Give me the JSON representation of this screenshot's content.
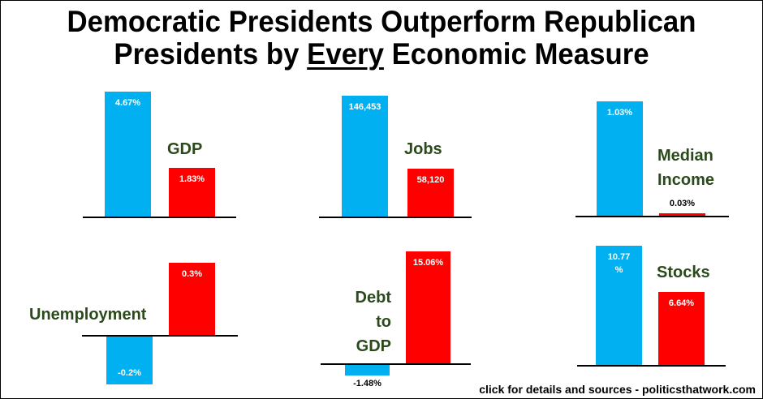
{
  "title": {
    "line1": "Democratic Presidents Outperform Republican",
    "line2_pre": "Presidents by ",
    "line2_emph": "Every",
    "line2_post": " Economic Measure"
  },
  "footer": "click for details and sources - politicsthatwork.com",
  "colors": {
    "democratic": "#00b0f0",
    "republican": "#ff0000",
    "category_text": "#2b4a1b"
  },
  "chart_data": [
    {
      "type": "bar",
      "title": "GDP",
      "categories": [
        "Democratic",
        "Republican"
      ],
      "values": [
        4.67,
        1.83
      ],
      "labels": [
        "4.67%",
        "1.83%"
      ]
    },
    {
      "type": "bar",
      "title": "Jobs",
      "categories": [
        "Democratic",
        "Republican"
      ],
      "values": [
        146453,
        58120
      ],
      "labels": [
        "146,453",
        "58,120"
      ]
    },
    {
      "type": "bar",
      "title": "Median Income",
      "title_lines": [
        "Median",
        "Income"
      ],
      "categories": [
        "Democratic",
        "Republican"
      ],
      "values": [
        1.03,
        0.03
      ],
      "labels": [
        "1.03%",
        "0.03%"
      ]
    },
    {
      "type": "bar",
      "title": "Unemployment",
      "categories": [
        "Democratic",
        "Republican"
      ],
      "values": [
        -0.2,
        0.3
      ],
      "labels": [
        "-0.2%",
        "0.3%"
      ]
    },
    {
      "type": "bar",
      "title": "Debt to GDP",
      "title_lines": [
        "Debt",
        "to",
        "GDP"
      ],
      "categories": [
        "Democratic",
        "Republican"
      ],
      "values": [
        -1.48,
        15.06
      ],
      "labels": [
        "-1.48%",
        "15.06%"
      ]
    },
    {
      "type": "bar",
      "title": "Stocks",
      "categories": [
        "Democratic",
        "Republican"
      ],
      "values": [
        10.77,
        6.64
      ],
      "labels": [
        "10.77 %",
        "6.64%"
      ]
    }
  ]
}
